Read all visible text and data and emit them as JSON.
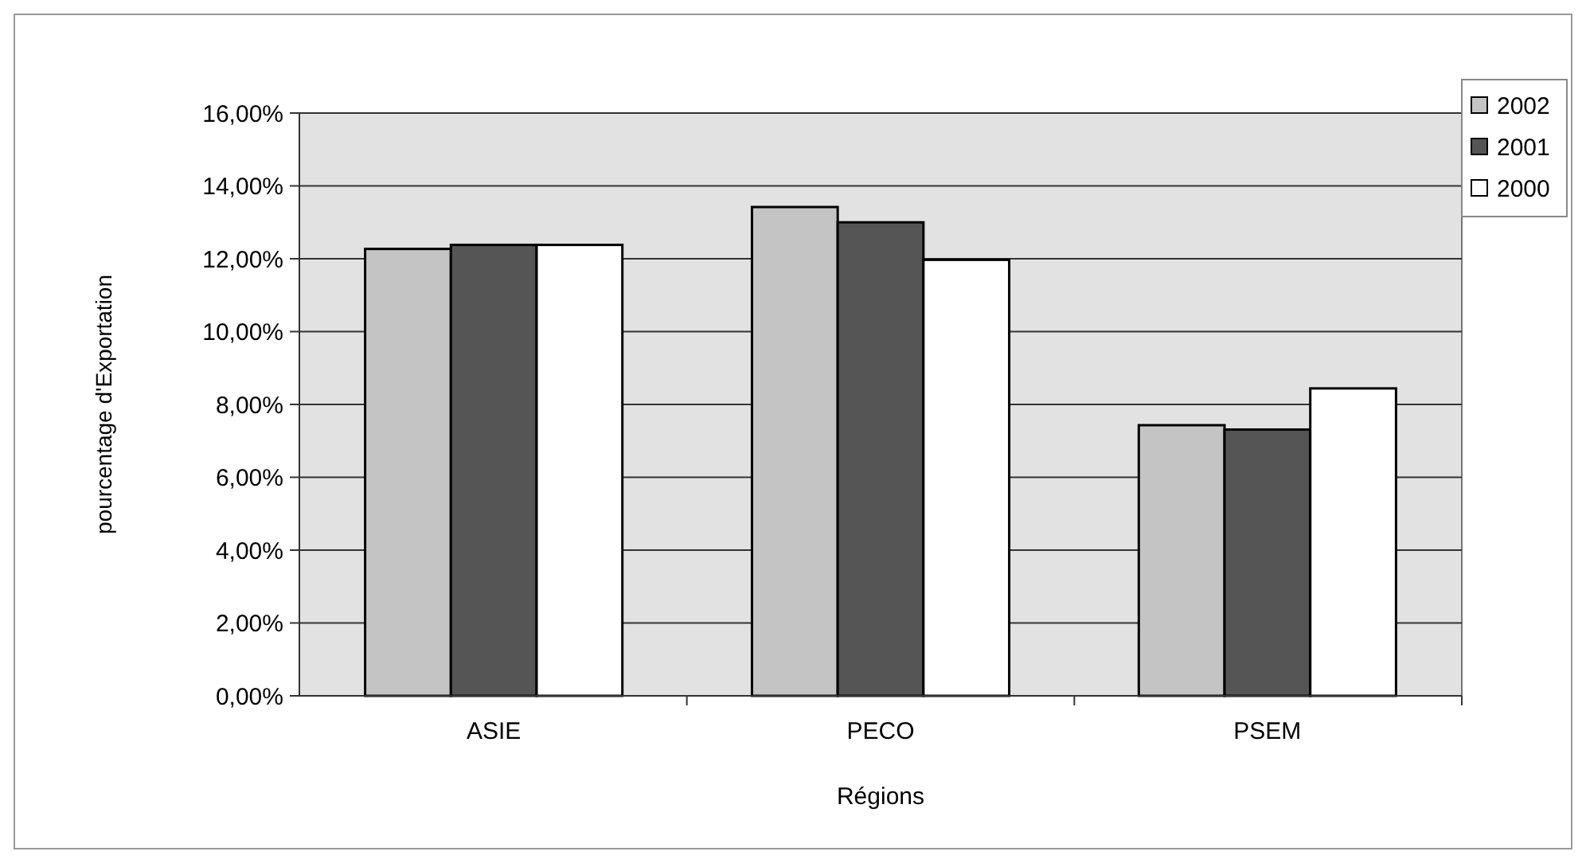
{
  "chart_data": {
    "type": "bar",
    "xlabel": "Régions",
    "ylabel": "pourcentage d'Exportation",
    "categories": [
      "ASIE",
      "PECO",
      "PSEM"
    ],
    "series": [
      {
        "name": "2002",
        "color": "#c4c4c4",
        "values": [
          12.27,
          13.42,
          7.43
        ]
      },
      {
        "name": "2001",
        "color": "#555555",
        "values": [
          12.38,
          13.0,
          7.31
        ]
      },
      {
        "name": "2000",
        "color": "#ffffff",
        "values": [
          12.38,
          11.97,
          8.44
        ]
      }
    ],
    "ylim": [
      0,
      16
    ],
    "yticks": [
      {
        "value": 0,
        "label": "0,00%"
      },
      {
        "value": 2,
        "label": "2,00%"
      },
      {
        "value": 4,
        "label": "4,00%"
      },
      {
        "value": 6,
        "label": "6,00%"
      },
      {
        "value": 8,
        "label": "8,00%"
      },
      {
        "value": 10,
        "label": "10,00%"
      },
      {
        "value": 12,
        "label": "12,00%"
      },
      {
        "value": 14,
        "label": "14,00%"
      },
      {
        "value": 16,
        "label": "16,00%"
      }
    ],
    "grid": "y",
    "legend": "top right"
  }
}
